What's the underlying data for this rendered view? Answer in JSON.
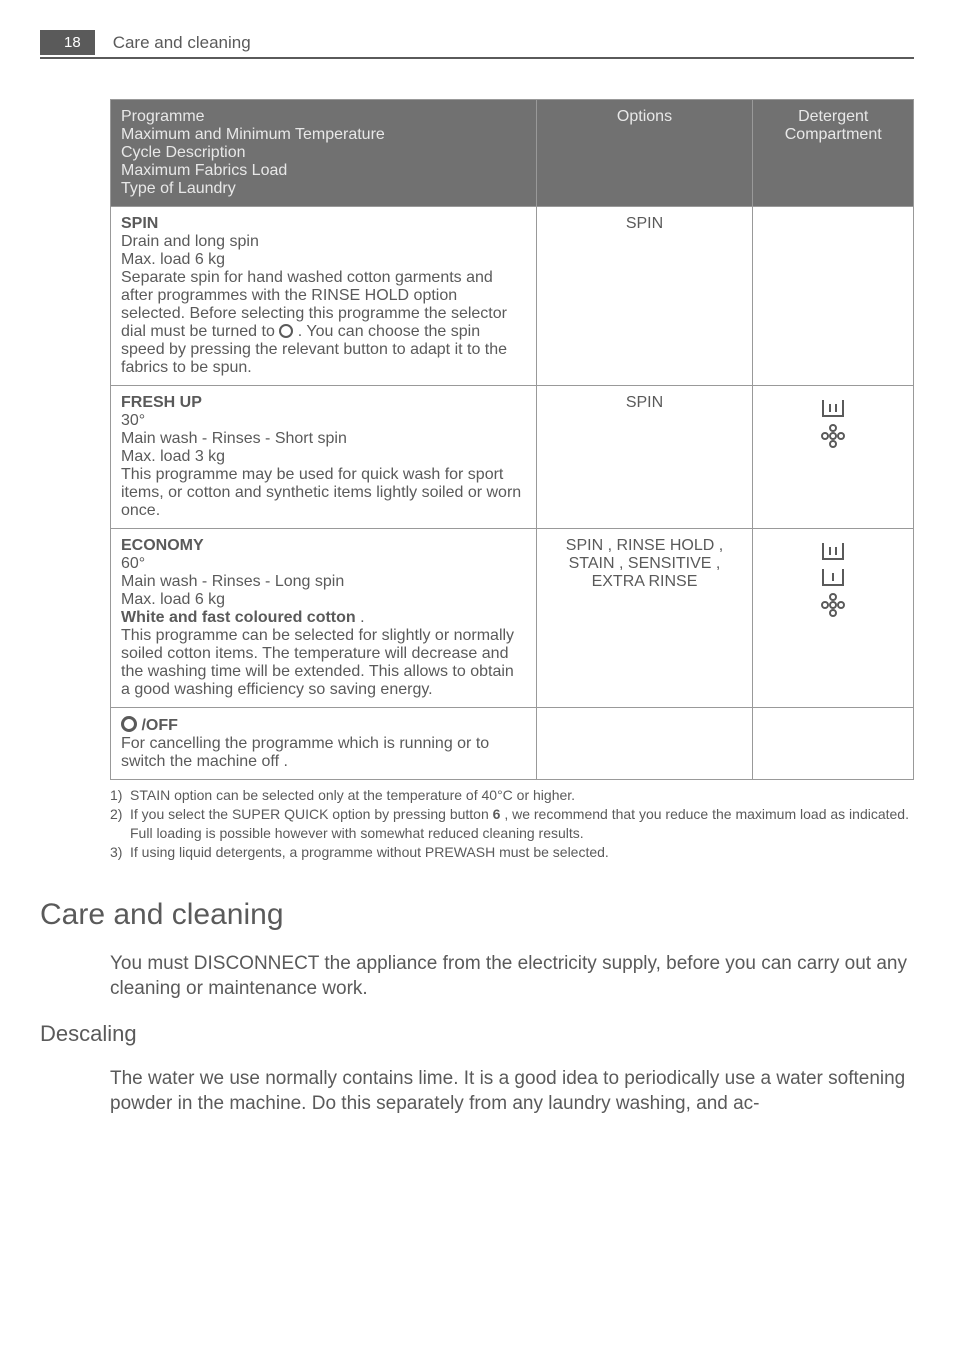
{
  "header": {
    "page_number": "18",
    "title": "Care and cleaning"
  },
  "table": {
    "header": {
      "col1_lines": [
        "Programme",
        "Maximum and Minimum Temperature",
        "Cycle Description",
        "Maximum Fabrics Load",
        "Type of Laundry"
      ],
      "col2": "Options",
      "col3": "Detergent Compartment"
    },
    "rows": [
      {
        "title": "SPIN",
        "lines": [
          "Drain and long spin",
          "Max. load 6 kg"
        ],
        "body_pre": "Separate spin for hand washed cotton garments and after programmes with the RINSE HOLD option selected. Before selecting this programme the selector dial must be turned to ",
        "body_post": " . You can choose the spin speed by pressing the relevant button to adapt it to the fabrics to be spun.",
        "options": "SPIN",
        "detergent_icons": []
      },
      {
        "title": "FRESH UP",
        "lines": [
          "30°",
          "Main wash - Rinses - Short spin",
          "Max. load 3 kg",
          "This programme may be used for quick wash for sport items, or cotton and synthetic items lightly soiled or worn once."
        ],
        "options": "SPIN",
        "detergent_icons": [
          "main-wash-icon",
          "softener-icon"
        ]
      },
      {
        "title": "ECONOMY",
        "lines": [
          "60°",
          "Main wash - Rinses - Long spin",
          "Max. load 6 kg"
        ],
        "bold_line": "White and fast coloured cotton",
        "tail": "This programme can be selected for slightly or normally soiled cotton items. The temperature will decrease and the washing time will be extended. This allows to obtain a good washing efficiency so saving energy.",
        "options": "SPIN , RINSE HOLD , STAIN , SENSITIVE , EXTRA RINSE",
        "detergent_icons": [
          "main-wash-icon",
          "prewash-icon",
          "softener-icon"
        ]
      },
      {
        "title_after_circle": " /OFF",
        "lines": [
          "For cancelling the programme which is running or to switch the machine off ."
        ],
        "options": "",
        "detergent_icons": []
      }
    ]
  },
  "footnotes": [
    {
      "n": "1)",
      "t": "STAIN option can be selected only at the temperature of 40°C or higher."
    },
    {
      "n": "2)",
      "t": "If you select the SUPER QUICK option by pressing button 6 , we recommend that you reduce the maximum load as indicated. Full loading is possible however with somewhat reduced cleaning results."
    },
    {
      "n": "3)",
      "t": "If using liquid detergents, a programme without PREWASH must be selected."
    }
  ],
  "section": {
    "heading": "Care and cleaning",
    "intro": "You must DISCONNECT the appliance from the electricity supply, before you can carry out any cleaning or maintenance work.",
    "sub_heading": "Descaling",
    "sub_body": "The water we use normally contains lime. It is a good idea to periodically use a water softening powder in the machine. Do this separately from any laundry washing, and ac-"
  },
  "footnote_bold_key": "6"
}
